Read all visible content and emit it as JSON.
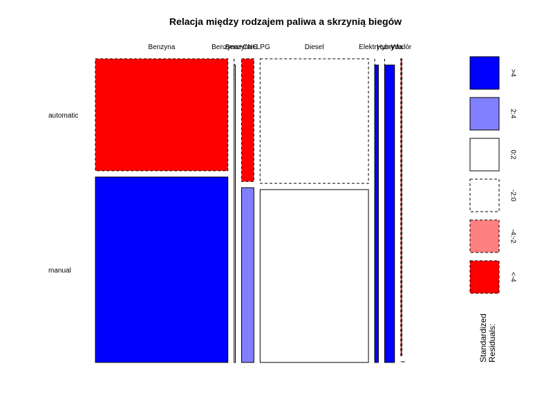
{
  "chart_data": {
    "type": "mosaic",
    "title": "Relacja między rodzajem paliwa a skrzynią biegów",
    "column_variable_levels": [
      "Benzyna",
      "Benzyna+CNG",
      "Benzyna+LPG",
      "Diesel",
      "Elektryczny",
      "Hybryda",
      "Wodór"
    ],
    "row_variable_levels": [
      "automatic",
      "manual"
    ],
    "column_shares": [
      0.4458,
      0.0042,
      0.0413,
      0.3646,
      0.0125,
      0.0333,
      0.0042
    ],
    "automatic_share_within_column": [
      0.3765,
      0.0,
      0.4125,
      0.4189,
      0.0,
      0.0,
      1.0
    ],
    "residual_class": {
      "Benzyna": {
        "automatic": "<-4",
        "manual": ">4"
      },
      "Benzyna+CNG": {
        "automatic": "-2:0",
        "manual": "0:2"
      },
      "Benzyna+LPG": {
        "automatic": "<-4",
        "manual": "2:4"
      },
      "Diesel": {
        "automatic": "-2:0",
        "manual": "0:2"
      },
      "Elektryczny": {
        "automatic": "-2:0",
        "manual": ">4"
      },
      "Hybryda": {
        "automatic": "-2:0",
        "manual": ">4"
      },
      "Wodór": {
        "automatic": "<-4",
        "manual": "0:2"
      }
    },
    "legend": {
      "title": "Standardized\nResiduals:",
      "title_lines": [
        "Standardized",
        "Residuals:"
      ],
      "placement": "right",
      "bins": [
        {
          "label": ">4",
          "fill": "#0000FF",
          "border": "solid"
        },
        {
          "label": "2:4",
          "fill": "#8080FF",
          "border": "solid"
        },
        {
          "label": "0:2",
          "fill": "#FFFFFF",
          "border": "solid"
        },
        {
          "label": "-2:0",
          "fill": "#FFFFFF",
          "border": "dashed"
        },
        {
          "label": "-4:-2",
          "fill": "#FF8080",
          "border": "dashed"
        },
        {
          "label": "<-4",
          "fill": "#FF0000",
          "border": "dashed"
        }
      ]
    }
  },
  "colors": {
    "strong_positive": "#0000FF",
    "positive": "#8080FF",
    "neutral": "#FFFFFF",
    "negative": "#FF8080",
    "strong_negative": "#FF0000",
    "border": "#000000"
  }
}
